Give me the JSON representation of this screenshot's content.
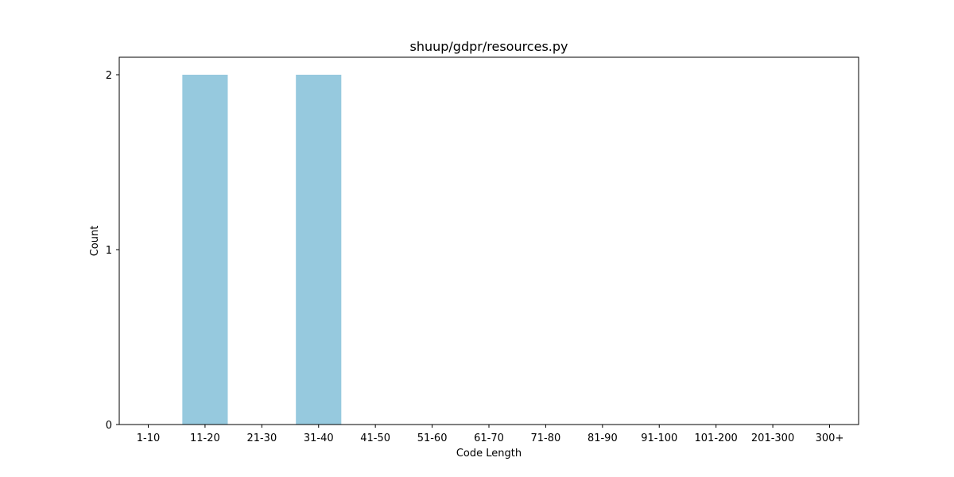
{
  "chart_data": {
    "type": "bar",
    "title": "shuup/gdpr/resources.py",
    "xlabel": "Code Length",
    "ylabel": "Count",
    "categories": [
      "1-10",
      "11-20",
      "21-30",
      "31-40",
      "41-50",
      "51-60",
      "61-70",
      "71-80",
      "81-90",
      "91-100",
      "101-200",
      "201-300",
      "300+"
    ],
    "values": [
      0,
      2,
      0,
      2,
      0,
      0,
      0,
      0,
      0,
      0,
      0,
      0,
      0
    ],
    "ylim": [
      0,
      2.1
    ],
    "yticks": [
      0,
      1,
      2
    ],
    "bar_color": "#96c9de",
    "grid": false
  }
}
